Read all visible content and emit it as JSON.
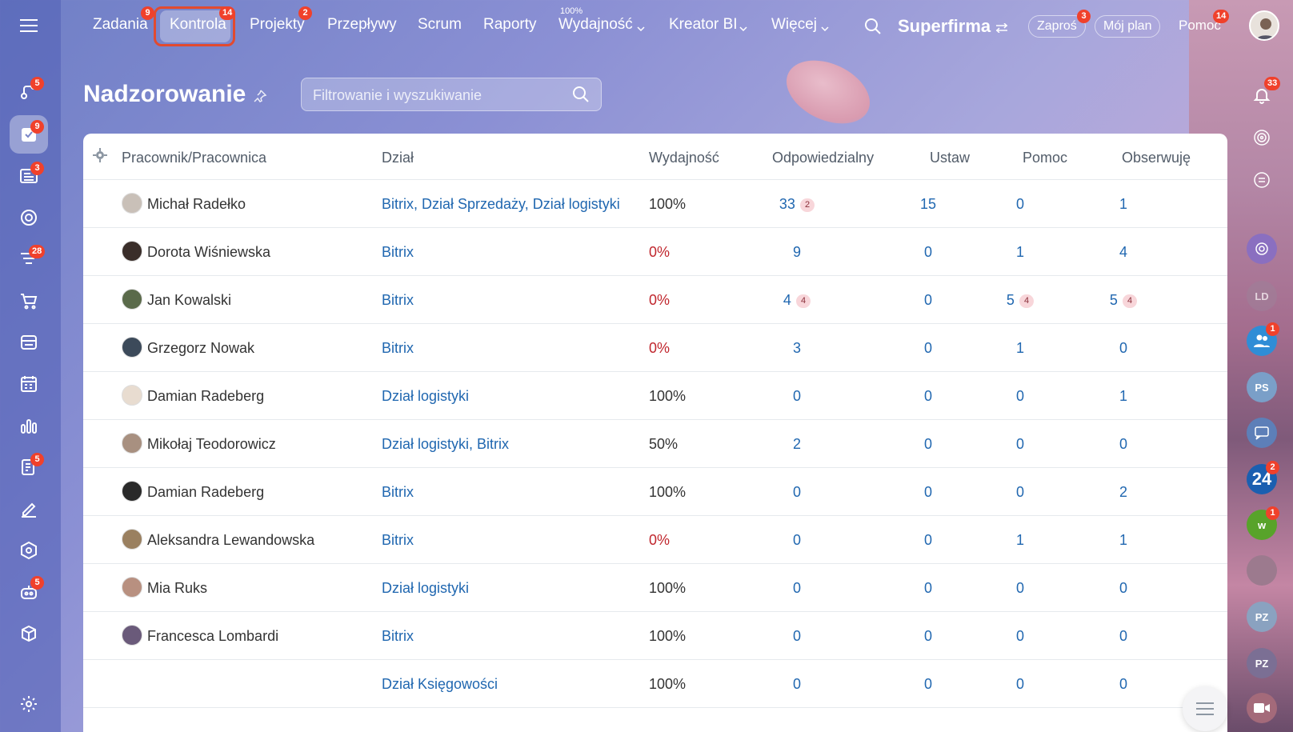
{
  "topnav": {
    "items": [
      {
        "label": "Zadania",
        "badge": "9"
      },
      {
        "label": "Kontrola",
        "badge": "14"
      },
      {
        "label": "Projekty",
        "badge": "2"
      },
      {
        "label": "Przepływy"
      },
      {
        "label": "Scrum"
      },
      {
        "label": "Raporty"
      },
      {
        "label": "Wydajność",
        "caption": "100%"
      },
      {
        "label": "Kreator BI"
      },
      {
        "label": "Więcej"
      }
    ],
    "brand": "Superfirma",
    "invite": {
      "label": "Zaproś",
      "badge": "3"
    },
    "my_plan": "Mój plan",
    "help": {
      "label": "Pomoc",
      "badge": "14"
    }
  },
  "sidebar_badges": {
    "crm": "5",
    "tasks": "9",
    "news": "3",
    "funnel": "28",
    "docs": "5",
    "robots": "5"
  },
  "page": {
    "title": "Nadzorowanie",
    "search_placeholder": "Filtrowanie i wyszukiwanie"
  },
  "table": {
    "headers": [
      "Pracownik/Pracownica",
      "Dział",
      "Wydajność",
      "Odpowiedzialny",
      "Ustaw",
      "Pomoc",
      "Obserwuję"
    ],
    "rows": [
      {
        "name": "Michał Radełko",
        "dept": "Bitrix, Dział Sprzedaży, Dział logistyki",
        "eff": "100%",
        "resp": "33",
        "resp_b": "2",
        "set": "15",
        "help": "0",
        "help_b": "",
        "obs": "1",
        "obs_b": ""
      },
      {
        "name": "Dorota Wiśniewska",
        "dept": "Bitrix",
        "eff": "0%",
        "resp": "9",
        "resp_b": "",
        "set": "0",
        "help": "1",
        "help_b": "",
        "obs": "4",
        "obs_b": ""
      },
      {
        "name": "Jan Kowalski",
        "dept": "Bitrix",
        "eff": "0%",
        "resp": "4",
        "resp_b": "4",
        "set": "0",
        "help": "5",
        "help_b": "4",
        "obs": "5",
        "obs_b": "4"
      },
      {
        "name": "Grzegorz Nowak",
        "dept": "Bitrix",
        "eff": "0%",
        "resp": "3",
        "resp_b": "",
        "set": "0",
        "help": "1",
        "help_b": "",
        "obs": "0",
        "obs_b": ""
      },
      {
        "name": "Damian Radeberg",
        "dept": "Dział logistyki",
        "eff": "100%",
        "resp": "0",
        "resp_b": "",
        "set": "0",
        "help": "0",
        "help_b": "",
        "obs": "1",
        "obs_b": ""
      },
      {
        "name": "Mikołaj Teodorowicz",
        "dept": "Dział logistyki, Bitrix",
        "eff": "50%",
        "resp": "2",
        "resp_b": "",
        "set": "0",
        "help": "0",
        "help_b": "",
        "obs": "0",
        "obs_b": ""
      },
      {
        "name": "Damian Radeberg",
        "dept": "Bitrix",
        "eff": "100%",
        "resp": "0",
        "resp_b": "",
        "set": "0",
        "help": "0",
        "help_b": "",
        "obs": "2",
        "obs_b": ""
      },
      {
        "name": "Aleksandra Lewandowska",
        "dept": "Bitrix",
        "eff": "0%",
        "resp": "0",
        "resp_b": "",
        "set": "0",
        "help": "1",
        "help_b": "",
        "obs": "1",
        "obs_b": ""
      },
      {
        "name": "Mia Ruks",
        "dept": "Dział logistyki",
        "eff": "100%",
        "resp": "0",
        "resp_b": "",
        "set": "0",
        "help": "0",
        "help_b": "",
        "obs": "0",
        "obs_b": ""
      },
      {
        "name": "Francesca Lombardi",
        "dept": "Bitrix",
        "eff": "100%",
        "resp": "0",
        "resp_b": "",
        "set": "0",
        "help": "0",
        "help_b": "",
        "obs": "0",
        "obs_b": ""
      },
      {
        "name": "",
        "dept": "Dział Księgowości",
        "eff": "100%",
        "resp": "0",
        "resp_b": "",
        "set": "0",
        "help": "0",
        "help_b": "",
        "obs": "0",
        "obs_b": ""
      }
    ]
  },
  "rightbar": {
    "notif_badge": "33",
    "group_badge": "1",
    "b24_label": "24",
    "b24_badge": "2",
    "w_label": "w",
    "w_badge": "1",
    "ps": "PS",
    "ld": "LD",
    "pz1": "PZ",
    "pz2": "PZ"
  },
  "colors": {
    "accent": "#2067b0",
    "danger": "#c0262d",
    "badge": "#f0412b",
    "highlight": "#e24a2f"
  }
}
